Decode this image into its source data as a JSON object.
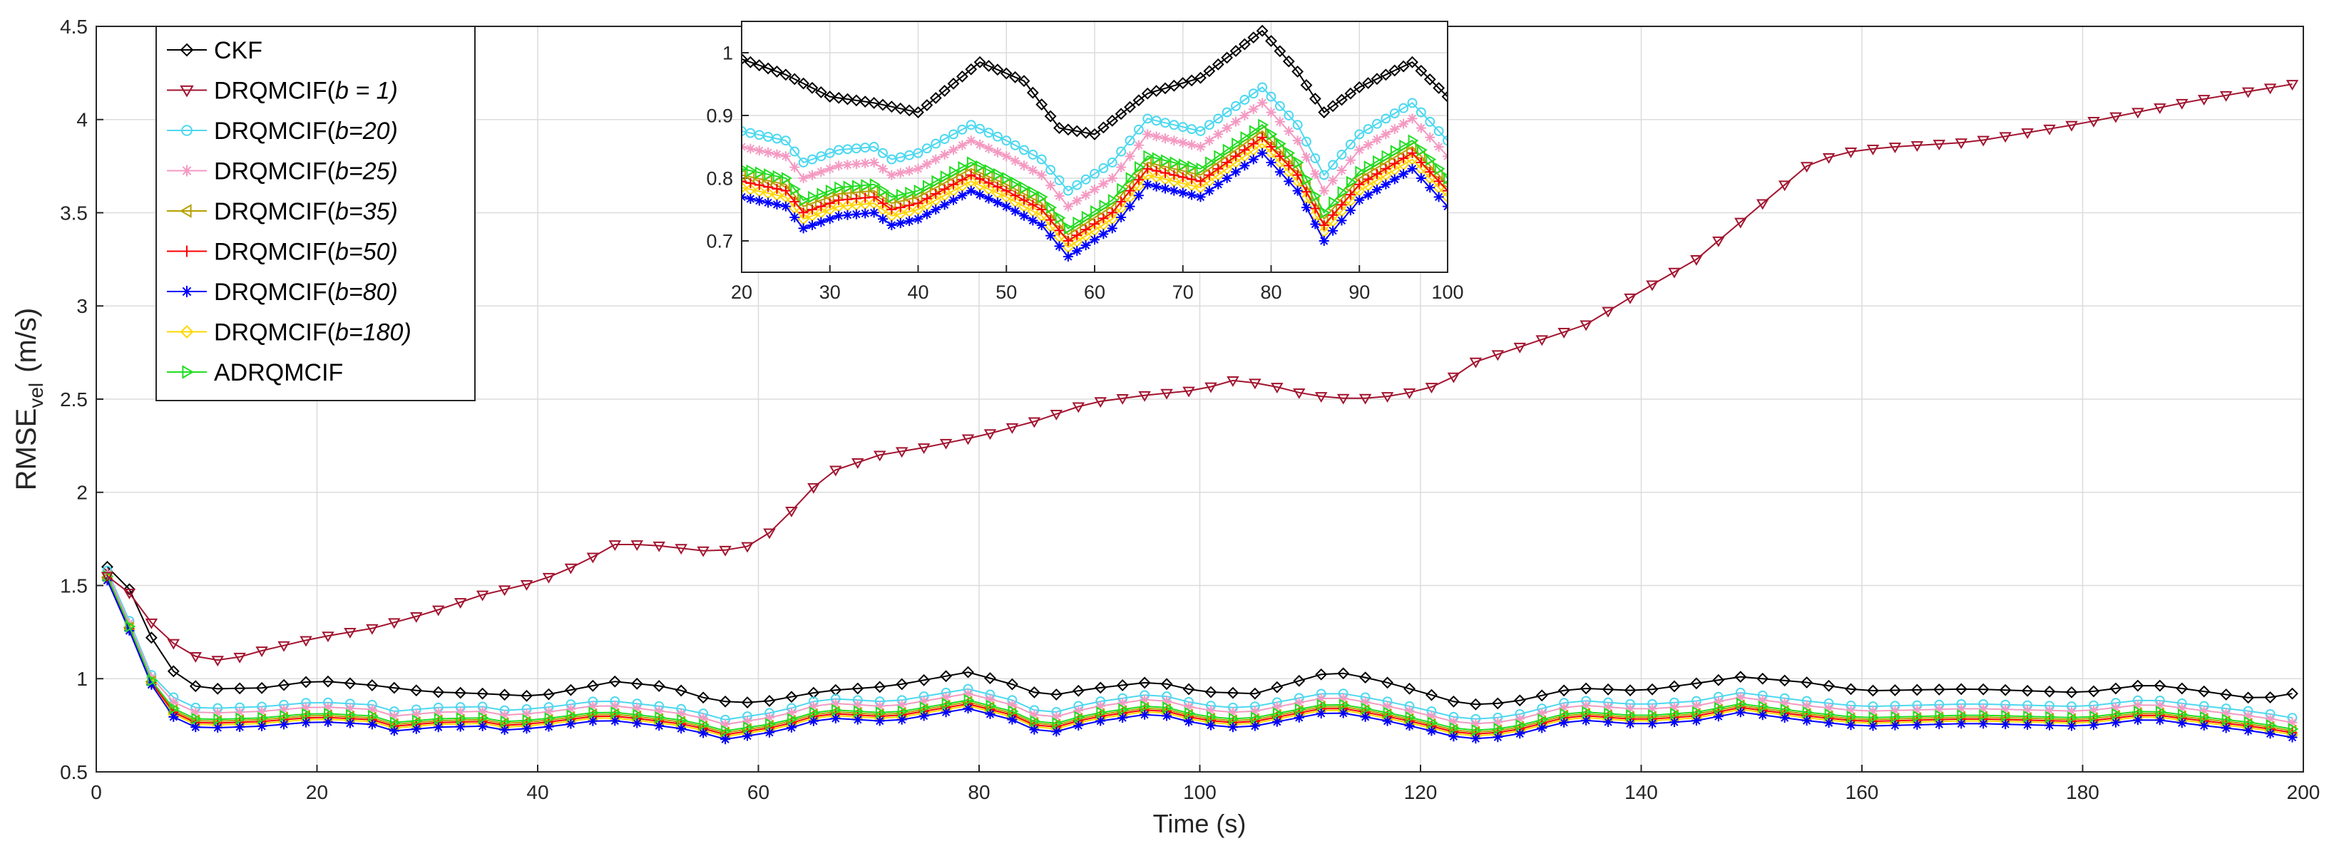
{
  "chart_data": {
    "type": "line",
    "title": "",
    "xlabel": "Time (s)",
    "ylabel_main": "RMSE",
    "ylabel_sub": "vel",
    "ylabel_unit": "(m/s)",
    "xlim": [
      0,
      200
    ],
    "ylim": [
      0.5,
      4.5
    ],
    "xticks": [
      0,
      20,
      40,
      60,
      80,
      100,
      120,
      140,
      160,
      180,
      200
    ],
    "yticks": [
      0.5,
      1,
      1.5,
      2,
      2.5,
      3,
      3.5,
      4,
      4.5
    ],
    "ytick_labels": [
      "0.5",
      "1",
      "1.5",
      "2",
      "2.5",
      "3",
      "3.5",
      "4",
      "4.5"
    ],
    "grid": true,
    "legend_position": "top-left",
    "series": [
      {
        "name": "CKF",
        "prefix": "CKF",
        "param": "",
        "color": "#000000",
        "marker": "diamond",
        "points": [
          [
            1,
            1.6
          ],
          [
            2,
            1.56
          ],
          [
            3,
            1.48
          ],
          [
            4,
            1.35
          ],
          [
            5,
            1.22
          ],
          [
            6,
            1.12
          ],
          [
            7,
            1.04
          ],
          [
            8,
            0.99
          ],
          [
            9,
            0.96
          ],
          [
            10,
            0.945
          ],
          [
            15,
            0.95
          ],
          [
            20,
            0.99
          ],
          [
            25,
            0.965
          ],
          [
            30,
            0.93
          ],
          [
            35,
            0.92
          ],
          [
            40,
            0.905
          ],
          [
            47,
            0.985
          ],
          [
            52,
            0.955
          ],
          [
            56,
            0.88
          ],
          [
            60,
            0.87
          ],
          [
            66,
            0.935
          ],
          [
            72,
            0.96
          ],
          [
            79,
            1.035
          ],
          [
            83,
            0.97
          ],
          [
            86,
            0.905
          ],
          [
            90,
            0.945
          ],
          [
            96,
            0.985
          ],
          [
            100,
            0.93
          ],
          [
            105,
            0.92
          ],
          [
            112,
            1.04
          ],
          [
            116,
            0.995
          ],
          [
            120,
            0.93
          ],
          [
            124,
            0.86
          ],
          [
            128,
            0.87
          ],
          [
            134,
            0.95
          ],
          [
            140,
            0.935
          ],
          [
            145,
            0.975
          ],
          [
            149,
            1.01
          ],
          [
            155,
            0.98
          ],
          [
            160,
            0.935
          ],
          [
            170,
            0.945
          ],
          [
            180,
            0.925
          ],
          [
            186,
            0.97
          ],
          [
            190,
            0.94
          ],
          [
            196,
            0.89
          ],
          [
            200,
            0.93
          ]
        ]
      },
      {
        "name": "DRQMCIF(b = 1)",
        "prefix": "DRQMCIF(",
        "param": "b = 1)",
        "color": "#a2142f",
        "marker": "triangle-down",
        "points": [
          [
            1,
            1.55
          ],
          [
            2,
            1.56
          ],
          [
            3,
            1.46
          ],
          [
            4,
            1.38
          ],
          [
            5,
            1.3
          ],
          [
            6,
            1.24
          ],
          [
            7,
            1.19
          ],
          [
            8,
            1.15
          ],
          [
            9,
            1.12
          ],
          [
            10,
            1.1
          ],
          [
            12,
            1.1
          ],
          [
            15,
            1.15
          ],
          [
            20,
            1.22
          ],
          [
            25,
            1.27
          ],
          [
            30,
            1.35
          ],
          [
            35,
            1.45
          ],
          [
            40,
            1.52
          ],
          [
            44,
            1.62
          ],
          [
            47,
            1.72
          ],
          [
            50,
            1.72
          ],
          [
            53,
            1.7
          ],
          [
            56,
            1.68
          ],
          [
            59,
            1.71
          ],
          [
            62,
            1.82
          ],
          [
            64,
            1.98
          ],
          [
            67,
            2.12
          ],
          [
            71,
            2.2
          ],
          [
            75,
            2.24
          ],
          [
            80,
            2.3
          ],
          [
            85,
            2.38
          ],
          [
            90,
            2.48
          ],
          [
            95,
            2.52
          ],
          [
            100,
            2.55
          ],
          [
            103,
            2.6
          ],
          [
            106,
            2.58
          ],
          [
            110,
            2.52
          ],
          [
            114,
            2.5
          ],
          [
            118,
            2.52
          ],
          [
            122,
            2.58
          ],
          [
            125,
            2.7
          ],
          [
            130,
            2.8
          ],
          [
            135,
            2.9
          ],
          [
            140,
            3.08
          ],
          [
            145,
            3.25
          ],
          [
            150,
            3.5
          ],
          [
            155,
            3.75
          ],
          [
            158,
            3.82
          ],
          [
            162,
            3.85
          ],
          [
            170,
            3.88
          ],
          [
            180,
            3.98
          ],
          [
            190,
            4.1
          ],
          [
            200,
            4.2
          ]
        ]
      },
      {
        "name": "DRQMCIF(b=20)",
        "prefix": "DRQMCIF(",
        "param": "b=20)",
        "color": "#4dd8f0",
        "marker": "circle",
        "offset": 0.06
      },
      {
        "name": "DRQMCIF(b=25)",
        "prefix": "DRQMCIF(",
        "param": "b=25)",
        "color": "#f49ac2",
        "marker": "star",
        "offset": 0.035
      },
      {
        "name": "DRQMCIF(b=35)",
        "prefix": "DRQMCIF(",
        "param": "b=35)",
        "color": "#b5a000",
        "marker": "triangle-left",
        "offset": -0.01
      },
      {
        "name": "DRQMCIF(b=50)",
        "prefix": "DRQMCIF(",
        "param": "b=50)",
        "color": "#ff0000",
        "marker": "plus",
        "offset": -0.02
      },
      {
        "name": "DRQMCIF(b=80)",
        "prefix": "DRQMCIF(",
        "param": "b=80)",
        "color": "#0000ff",
        "marker": "asterisk",
        "offset": -0.045
      },
      {
        "name": "DRQMCIF(b=180)",
        "prefix": "DRQMCIF(",
        "param": "b=180)",
        "color": "#ffd700",
        "marker": "diamond",
        "offset": -0.03
      },
      {
        "name": "ADRQMCIF",
        "prefix": "ADRQMCIF",
        "param": "",
        "color": "#22dd22",
        "marker": "triangle-right",
        "offset": 0.0
      }
    ],
    "filter_base": [
      [
        1,
        1.55
      ],
      [
        2,
        1.42
      ],
      [
        3,
        1.28
      ],
      [
        4,
        1.12
      ],
      [
        5,
        0.99
      ],
      [
        6,
        0.9
      ],
      [
        7,
        0.84
      ],
      [
        8,
        0.8
      ],
      [
        9,
        0.785
      ],
      [
        10,
        0.78
      ],
      [
        15,
        0.79
      ],
      [
        20,
        0.815
      ],
      [
        25,
        0.8
      ],
      [
        27,
        0.765
      ],
      [
        31,
        0.785
      ],
      [
        35,
        0.79
      ],
      [
        37,
        0.77
      ],
      [
        40,
        0.78
      ],
      [
        46,
        0.825
      ],
      [
        50,
        0.8
      ],
      [
        54,
        0.77
      ],
      [
        57,
        0.72
      ],
      [
        62,
        0.765
      ],
      [
        66,
        0.835
      ],
      [
        72,
        0.815
      ],
      [
        79,
        0.885
      ],
      [
        83,
        0.825
      ],
      [
        86,
        0.745
      ],
      [
        90,
        0.81
      ],
      [
        96,
        0.86
      ],
      [
        100,
        0.8
      ],
      [
        104,
        0.78
      ],
      [
        112,
        0.87
      ],
      [
        116,
        0.83
      ],
      [
        120,
        0.78
      ],
      [
        124,
        0.72
      ],
      [
        128,
        0.735
      ],
      [
        134,
        0.825
      ],
      [
        140,
        0.8
      ],
      [
        145,
        0.82
      ],
      [
        149,
        0.865
      ],
      [
        155,
        0.82
      ],
      [
        160,
        0.79
      ],
      [
        170,
        0.805
      ],
      [
        180,
        0.79
      ],
      [
        186,
        0.83
      ],
      [
        190,
        0.8
      ],
      [
        196,
        0.76
      ],
      [
        200,
        0.72
      ]
    ],
    "inset": {
      "xlim": [
        20,
        100
      ],
      "ylim": [
        0.65,
        1.05
      ],
      "xticks": [
        20,
        30,
        40,
        50,
        60,
        70,
        80,
        90,
        100
      ],
      "yticks": [
        0.7,
        0.8,
        0.9,
        1
      ],
      "ytick_labels": [
        "0.7",
        "0.8",
        "0.9",
        "1"
      ]
    }
  }
}
